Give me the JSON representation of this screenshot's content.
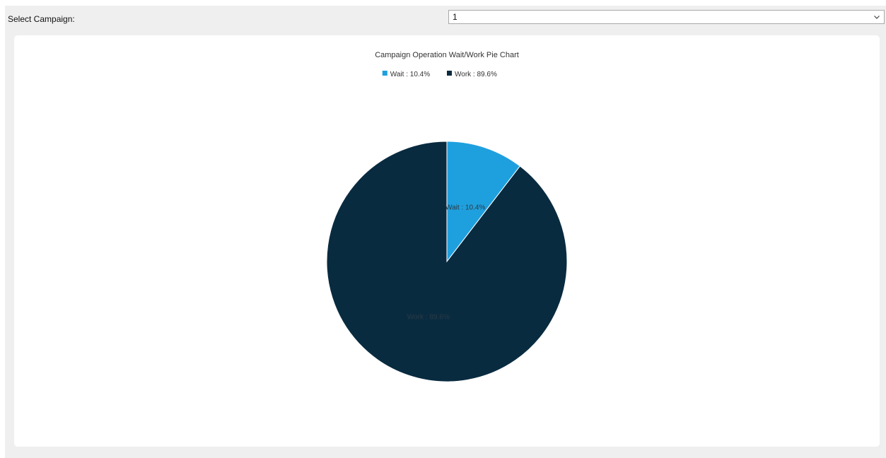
{
  "toolbar": {
    "label": "Select Campaign:",
    "campaign_select": {
      "selected_value": "1",
      "icon": "chevron-down-icon"
    }
  },
  "chart_data": {
    "type": "pie",
    "title": "Campaign Operation Wait/Work Pie Chart",
    "legend_position": "top-center",
    "slices": [
      {
        "name": "Wait",
        "value": 10.4,
        "label": "Wait : 10.4%",
        "color": "#1fa0de"
      },
      {
        "name": "Work",
        "value": 89.6,
        "label": "Work : 89.6%",
        "color": "#092b40"
      }
    ]
  }
}
